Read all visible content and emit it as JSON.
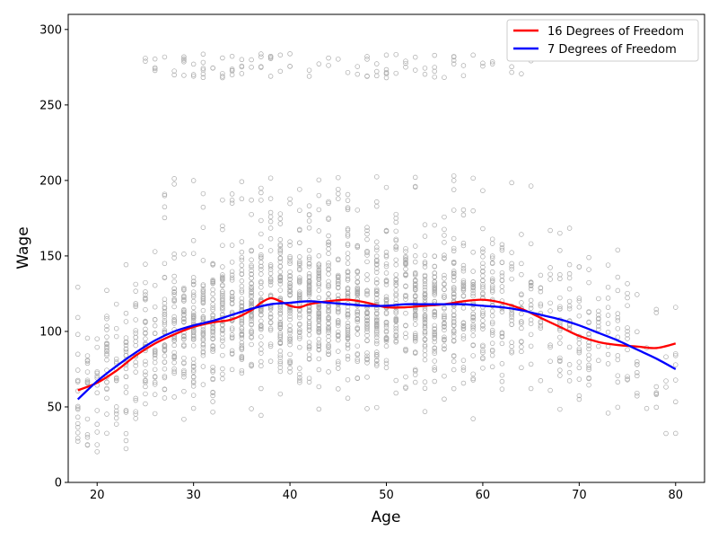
{
  "chart_data": {
    "type": "scatter",
    "title": "",
    "xlabel": "Age",
    "ylabel": "Wage",
    "xlim": [
      17,
      83
    ],
    "ylim": [
      0,
      310
    ],
    "xticks": [
      20,
      30,
      40,
      50,
      60,
      70,
      80
    ],
    "yticks": [
      0,
      50,
      100,
      150,
      200,
      250,
      300
    ],
    "grid": false,
    "legend_position": "top-right",
    "scatter_color": "#aaaaaa",
    "scatter_description": "approx. 3000 individual wage observations (ages 18-80), hollow grey circles",
    "series": [
      {
        "name": "16 Degrees of Freedom",
        "color": "#ff0000",
        "x": [
          18,
          20,
          22,
          24,
          26,
          28,
          30,
          32,
          34,
          36,
          37,
          38,
          39,
          40,
          41,
          42,
          44,
          46,
          48,
          50,
          52,
          54,
          56,
          58,
          60,
          62,
          64,
          66,
          68,
          70,
          72,
          74,
          76,
          78,
          80
        ],
        "values": [
          61,
          66,
          74,
          84,
          92,
          98,
          103,
          106,
          108,
          114,
          119,
          122,
          120,
          117,
          116,
          118,
          120,
          121,
          119,
          116,
          116,
          117,
          118,
          120,
          121,
          119,
          115,
          109,
          103,
          97,
          93,
          91,
          90,
          89,
          92
        ]
      },
      {
        "name": "7 Degrees of Freedom",
        "color": "#0000ff",
        "x": [
          18,
          20,
          22,
          24,
          26,
          28,
          30,
          32,
          34,
          36,
          38,
          40,
          42,
          44,
          46,
          48,
          50,
          52,
          54,
          56,
          58,
          60,
          62,
          64,
          66,
          68,
          70,
          72,
          74,
          76,
          78,
          80
        ],
        "values": [
          55,
          67,
          77,
          86,
          94,
          100,
          104,
          107,
          111,
          115,
          118,
          119,
          120,
          119,
          118,
          117,
          117,
          118,
          118,
          118,
          118,
          117,
          116,
          114,
          111,
          108,
          104,
          99,
          94,
          88,
          82,
          75
        ]
      }
    ]
  }
}
